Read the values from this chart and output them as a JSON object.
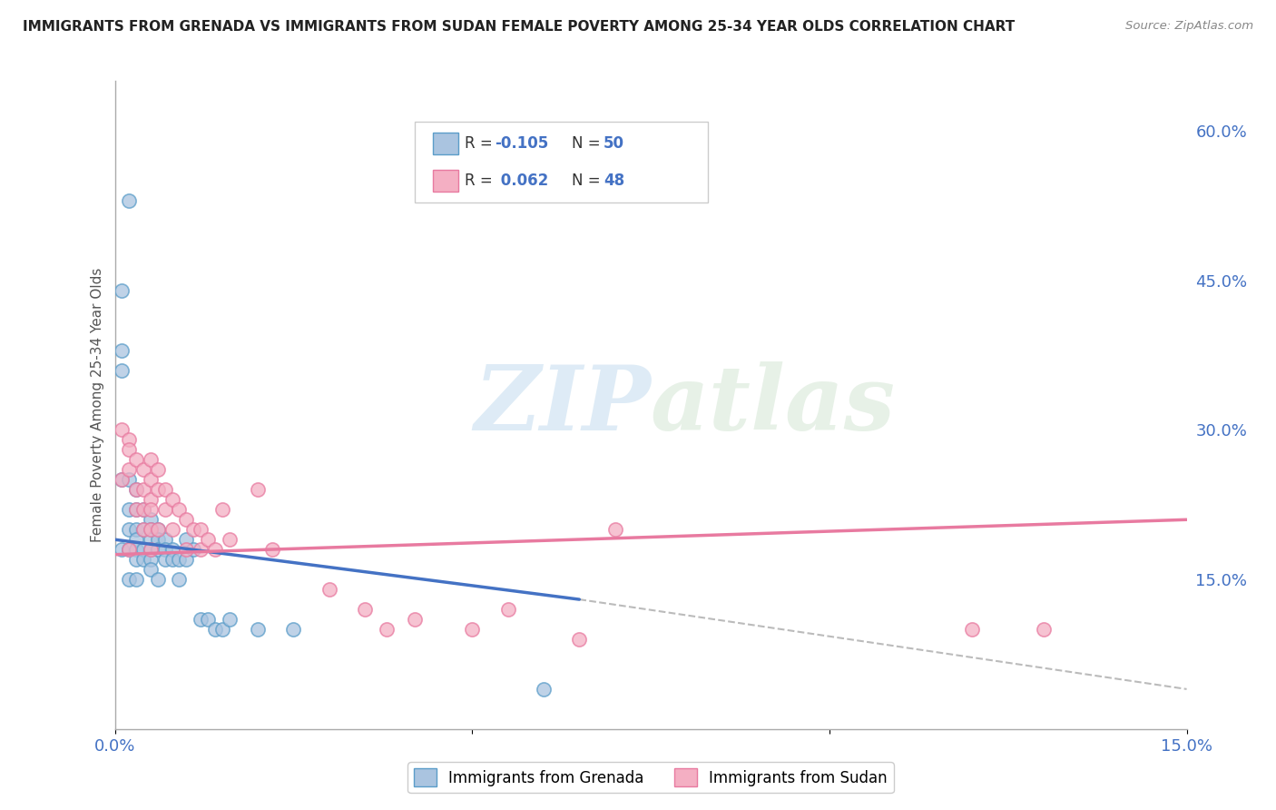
{
  "title": "IMMIGRANTS FROM GRENADA VS IMMIGRANTS FROM SUDAN FEMALE POVERTY AMONG 25-34 YEAR OLDS CORRELATION CHART",
  "source": "Source: ZipAtlas.com",
  "ylabel": "Female Poverty Among 25-34 Year Olds",
  "xlim": [
    0.0,
    0.15
  ],
  "ylim": [
    0.0,
    0.65
  ],
  "xtick_positions": [
    0.0,
    0.05,
    0.1,
    0.15
  ],
  "xtick_labels": [
    "0.0%",
    "",
    "",
    "15.0%"
  ],
  "ytick_positions": [
    0.15,
    0.3,
    0.45,
    0.6
  ],
  "ytick_labels": [
    "15.0%",
    "30.0%",
    "45.0%",
    "60.0%"
  ],
  "color_grenada_fill": "#aac4e0",
  "color_grenada_edge": "#5b9dc9",
  "color_sudan_fill": "#f4afc3",
  "color_sudan_edge": "#e87aa0",
  "color_grenada_line": "#4472c4",
  "color_sudan_line": "#e87aa0",
  "color_dashed": "#aaaaaa",
  "background_color": "#ffffff",
  "grid_color": "#cccccc",
  "watermark_zip": "ZIP",
  "watermark_atlas": "atlas",
  "grenada_x": [
    0.002,
    0.001,
    0.001,
    0.001,
    0.001,
    0.001,
    0.002,
    0.002,
    0.002,
    0.002,
    0.002,
    0.003,
    0.003,
    0.003,
    0.003,
    0.003,
    0.003,
    0.003,
    0.004,
    0.004,
    0.004,
    0.004,
    0.005,
    0.005,
    0.005,
    0.005,
    0.005,
    0.005,
    0.006,
    0.006,
    0.006,
    0.006,
    0.007,
    0.007,
    0.007,
    0.008,
    0.008,
    0.009,
    0.009,
    0.01,
    0.01,
    0.011,
    0.012,
    0.013,
    0.014,
    0.015,
    0.016,
    0.02,
    0.025,
    0.06
  ],
  "grenada_y": [
    0.53,
    0.44,
    0.38,
    0.36,
    0.25,
    0.18,
    0.25,
    0.22,
    0.2,
    0.18,
    0.15,
    0.24,
    0.22,
    0.2,
    0.19,
    0.18,
    0.17,
    0.15,
    0.22,
    0.2,
    0.18,
    0.17,
    0.21,
    0.2,
    0.19,
    0.18,
    0.17,
    0.16,
    0.2,
    0.19,
    0.18,
    0.15,
    0.19,
    0.18,
    0.17,
    0.18,
    0.17,
    0.17,
    0.15,
    0.19,
    0.17,
    0.18,
    0.11,
    0.11,
    0.1,
    0.1,
    0.11,
    0.1,
    0.1,
    0.04
  ],
  "sudan_x": [
    0.001,
    0.001,
    0.002,
    0.002,
    0.002,
    0.002,
    0.003,
    0.003,
    0.003,
    0.004,
    0.004,
    0.004,
    0.004,
    0.005,
    0.005,
    0.005,
    0.005,
    0.005,
    0.005,
    0.006,
    0.006,
    0.006,
    0.007,
    0.007,
    0.008,
    0.008,
    0.009,
    0.01,
    0.01,
    0.011,
    0.012,
    0.012,
    0.013,
    0.014,
    0.015,
    0.016,
    0.02,
    0.022,
    0.03,
    0.035,
    0.038,
    0.042,
    0.05,
    0.055,
    0.065,
    0.07,
    0.12,
    0.13
  ],
  "sudan_y": [
    0.3,
    0.25,
    0.29,
    0.28,
    0.26,
    0.18,
    0.27,
    0.24,
    0.22,
    0.26,
    0.24,
    0.22,
    0.2,
    0.27,
    0.25,
    0.23,
    0.22,
    0.2,
    0.18,
    0.26,
    0.24,
    0.2,
    0.24,
    0.22,
    0.23,
    0.2,
    0.22,
    0.21,
    0.18,
    0.2,
    0.2,
    0.18,
    0.19,
    0.18,
    0.22,
    0.19,
    0.24,
    0.18,
    0.14,
    0.12,
    0.1,
    0.11,
    0.1,
    0.12,
    0.09,
    0.2,
    0.1,
    0.1
  ],
  "grenada_line_x0": 0.0,
  "grenada_line_y0": 0.19,
  "grenada_line_x1": 0.065,
  "grenada_line_y1": 0.13,
  "dashed_line_x0": 0.065,
  "dashed_line_y0": 0.13,
  "dashed_line_x1": 0.15,
  "dashed_line_y1": 0.04,
  "sudan_line_x0": 0.0,
  "sudan_line_y0": 0.175,
  "sudan_line_x1": 0.15,
  "sudan_line_y1": 0.21
}
